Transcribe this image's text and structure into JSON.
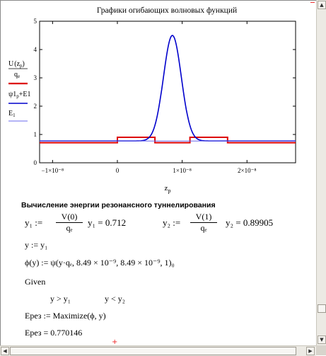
{
  "chart_data": {
    "type": "line",
    "title": "Графики огибающих волновых функций",
    "xlabel": "z_p",
    "xlim": [
      -1.2e-08,
      2.75e-08
    ],
    "ylim": [
      0,
      5
    ],
    "x_ticks": [
      "−1×10⁻⁸",
      "0",
      "1×10⁻⁸",
      "2×10⁻⁸"
    ],
    "y_ticks": [
      "0",
      "1",
      "2",
      "3",
      "4",
      "5"
    ],
    "legend": [
      {
        "label_num": "U(z_p)",
        "label_den": "q_e",
        "color": "#dd0000"
      },
      {
        "label": "ψ1_p+E1",
        "color": "#0000cc"
      },
      {
        "label": "E1",
        "color": "#6a6aee"
      }
    ],
    "grid": false,
    "series": [
      {
        "key": "potential",
        "color": "#dd0000",
        "x": [
          -1.2e-08,
          0,
          0,
          5.8e-09,
          5.8e-09,
          1.12e-08,
          1.12e-08,
          1.7e-08,
          1.7e-08,
          2.75e-08
        ],
        "y": [
          0.71,
          0.71,
          0.9,
          0.9,
          0.71,
          0.71,
          0.9,
          0.9,
          0.71,
          0.71
        ]
      },
      {
        "key": "wavefunction",
        "color": "#0000cc",
        "center": 8.49e-09,
        "peak": 4.5,
        "base": 0.77,
        "width": 1.95e-09
      },
      {
        "key": "energy",
        "color": "#6a6aee",
        "value": 0.770146
      }
    ]
  },
  "section": {
    "heading": "Вычисление энергии резонансного туннелирования"
  },
  "math": {
    "y1_lhs": "y₁ :=",
    "y1_num": "V(0)",
    "y1_den": "qₑ",
    "y1_res": "y₁ = 0.712",
    "y2_lhs": "y₂ :=",
    "y2_num": "V(1)",
    "y2_den": "qₑ",
    "y2_res": "y₂ = 0.89905",
    "y_assign": "y := y₁",
    "phi_def": "ϕ(y) := ψ(y·qₑ, 8.49 × 10⁻⁹, 8.49 × 10⁻⁹, 1)₀",
    "given": "Given",
    "c1": "y > y₁",
    "c2": "y < y₂",
    "maximize": "Eрез := Maximize(ϕ, y)",
    "result": "Eрез = 0.770146"
  }
}
